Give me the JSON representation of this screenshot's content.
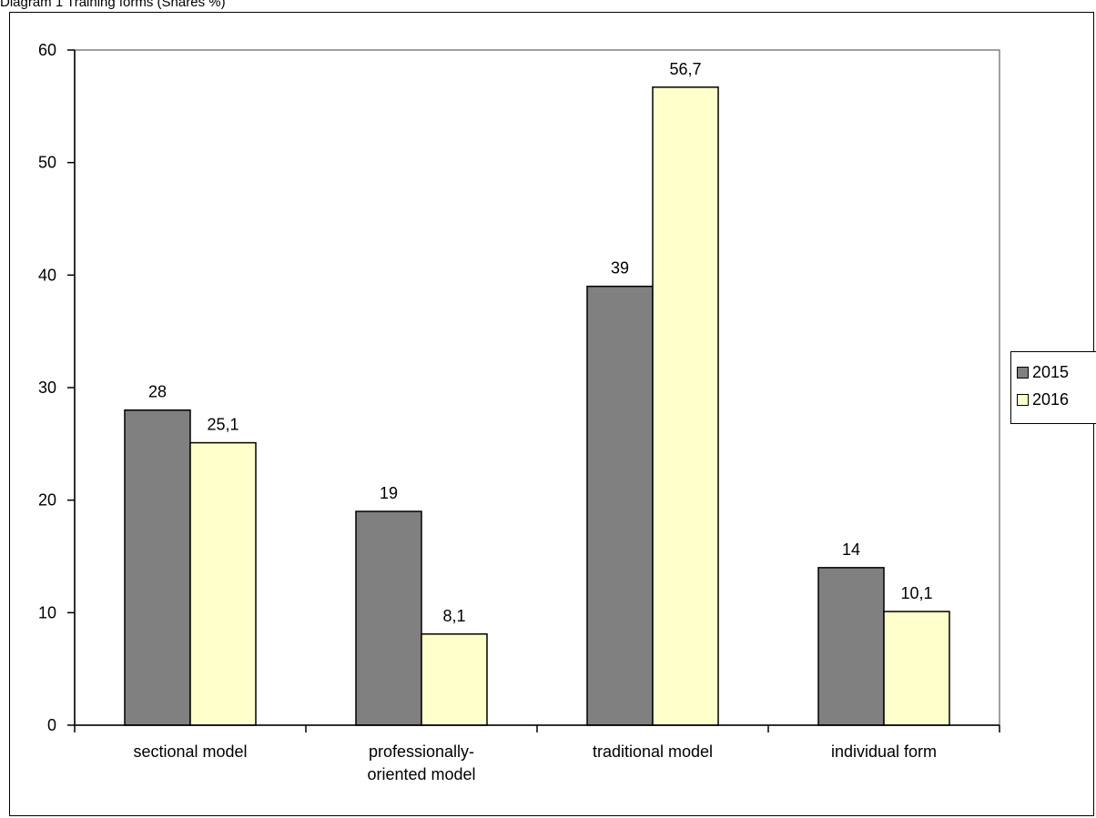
{
  "caption": "Diagram 1 Training forms (Shares %)",
  "chart_data": {
    "type": "bar",
    "title": "",
    "xlabel": "",
    "ylabel": "",
    "categories": [
      [
        "sectional model"
      ],
      [
        "professionally-",
        "oriented model"
      ],
      [
        "traditional model"
      ],
      [
        "individual form"
      ]
    ],
    "series": [
      {
        "name": "2015",
        "color": "#808080",
        "values": [
          28,
          19,
          39,
          14
        ],
        "labels": [
          "28",
          "19",
          "39",
          "14"
        ]
      },
      {
        "name": "2016",
        "color": "#ffffcc",
        "values": [
          25.1,
          8.1,
          56.7,
          10.1
        ],
        "labels": [
          "25,1",
          "8,1",
          "56,7",
          "10,1"
        ]
      }
    ],
    "ylim": [
      0,
      60
    ],
    "yticks": [
      0,
      10,
      20,
      30,
      40,
      50,
      60
    ],
    "grid": false,
    "legend": "right"
  }
}
